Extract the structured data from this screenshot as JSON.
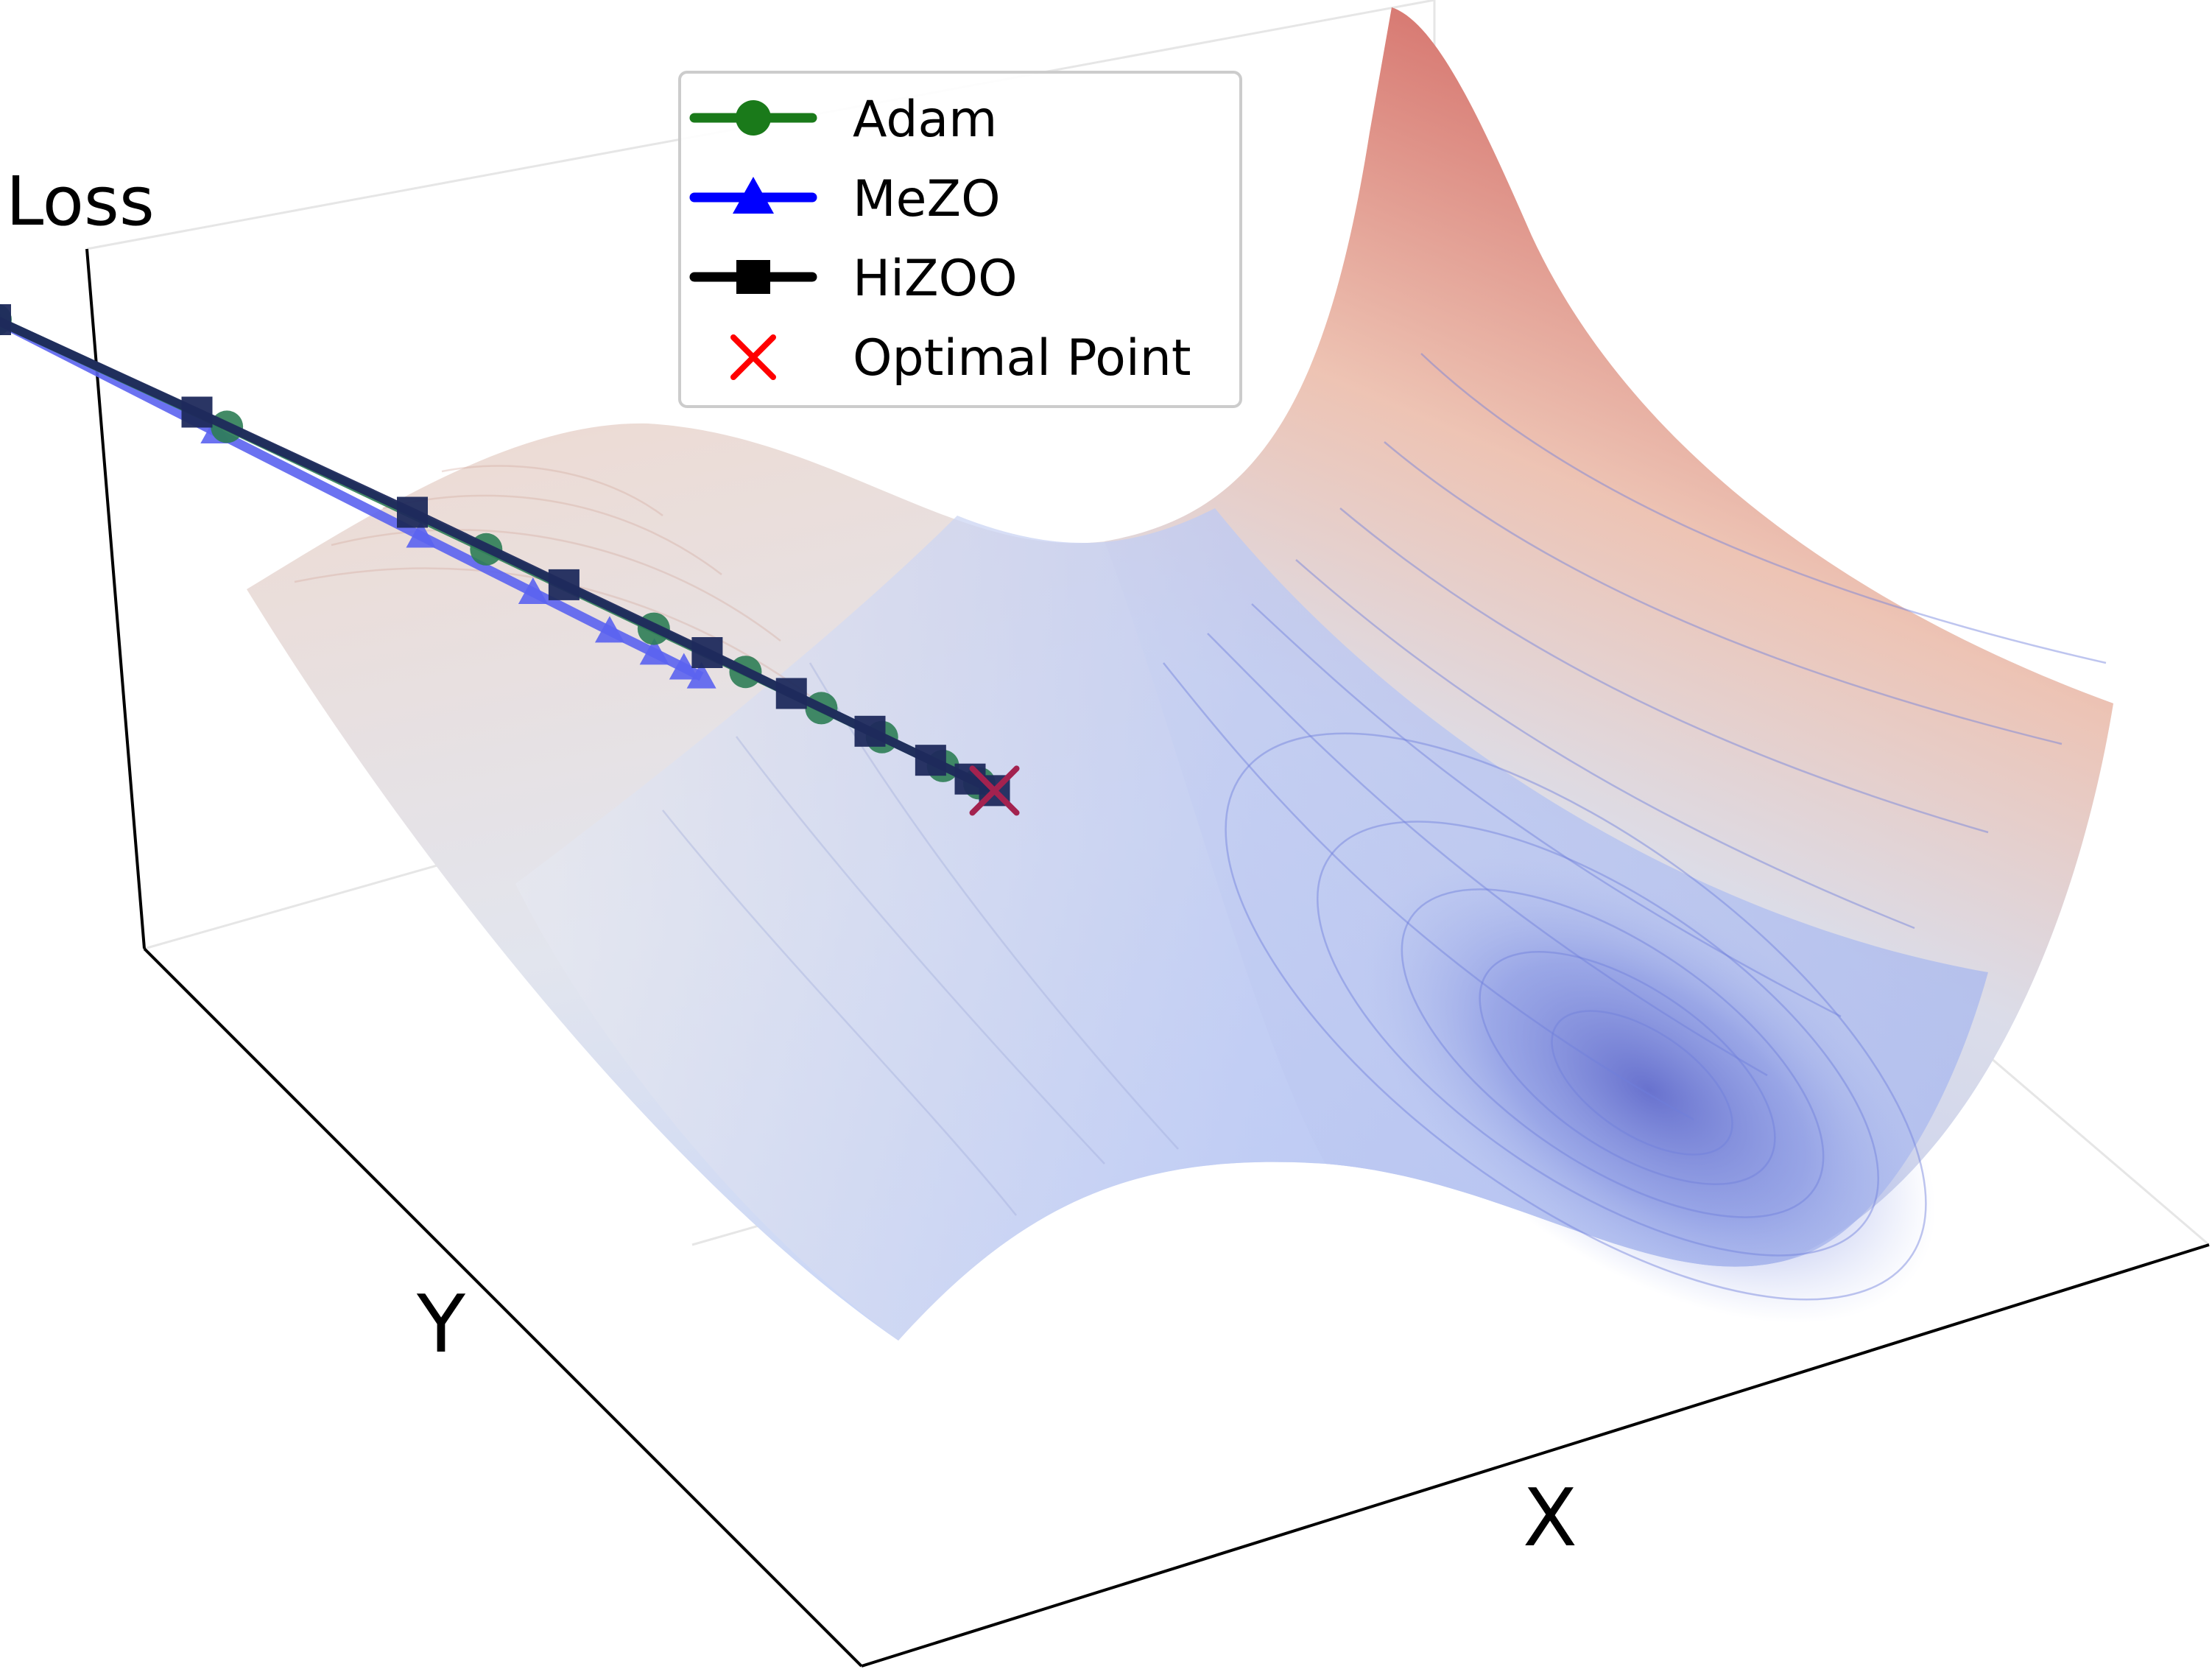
{
  "chart_data": {
    "type": "surface3d-trajectories",
    "title": "",
    "xlabel": "X",
    "ylabel": "Y",
    "zlabel": "Loss",
    "grid": true,
    "legend_position": "top-center",
    "colormap": {
      "low": "#3b4cc0",
      "mid": "#dddddd",
      "high": "#b40426"
    },
    "legend": [
      {
        "label": "Adam",
        "color": "#1a7a1a",
        "marker": "circle"
      },
      {
        "label": "MeZO",
        "color": "#0000ff",
        "marker": "triangle"
      },
      {
        "label": "HiZOO",
        "color": "#000000",
        "marker": "square"
      },
      {
        "label": "Optimal Point",
        "color": "#ff0000",
        "marker": "x"
      }
    ],
    "series": [
      {
        "name": "Adam",
        "x": [
          -2.0,
          -1.45,
          -0.9,
          -0.55,
          -0.35,
          -0.2,
          -0.08,
          0.05,
          0.12
        ],
        "y": [
          2.0,
          1.8,
          1.5,
          1.3,
          1.2,
          1.1,
          1.02,
          0.95,
          0.9
        ]
      },
      {
        "name": "MeZO",
        "x": [
          -2.0,
          -1.75,
          -1.5,
          -1.35,
          -1.25,
          -1.18,
          -1.14,
          -1.12
        ],
        "y": [
          2.0,
          1.5,
          1.05,
          0.82,
          0.66,
          0.58,
          0.52,
          0.48
        ]
      },
      {
        "name": "HiZOO",
        "x": [
          -2.0,
          -1.5,
          -1.0,
          -0.7,
          -0.4,
          -0.25,
          -0.1,
          0.02,
          0.1,
          0.15
        ],
        "y": [
          2.0,
          1.85,
          1.65,
          1.45,
          1.28,
          1.15,
          1.04,
          0.96,
          0.91,
          0.88
        ]
      }
    ],
    "optimal_point": {
      "x": 0.15,
      "y": 0.88
    }
  }
}
